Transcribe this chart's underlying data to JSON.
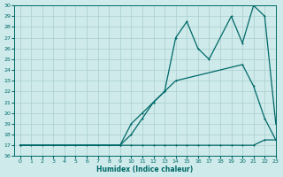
{
  "xlabel": "Humidex (Indice chaleur)",
  "bg_color": "#ceeaea",
  "grid_color": "#aacece",
  "line_color": "#006868",
  "ylim": [
    16,
    30
  ],
  "xlim": [
    -0.5,
    23
  ],
  "yticks": [
    16,
    17,
    18,
    19,
    20,
    21,
    22,
    23,
    24,
    25,
    26,
    27,
    28,
    29,
    30
  ],
  "xticks": [
    0,
    1,
    2,
    3,
    4,
    5,
    6,
    7,
    8,
    9,
    10,
    11,
    12,
    13,
    14,
    15,
    16,
    17,
    18,
    19,
    20,
    21,
    22,
    23
  ],
  "line1_x": [
    0,
    1,
    2,
    3,
    4,
    5,
    6,
    7,
    8,
    9,
    10,
    11,
    12,
    13,
    14,
    15,
    16,
    17,
    18,
    19,
    20,
    21,
    22,
    23
  ],
  "line1_y": [
    17,
    17,
    17,
    17,
    17,
    17,
    17,
    17,
    17,
    17,
    17,
    17,
    17,
    17,
    17,
    17,
    17,
    17,
    17,
    17,
    17,
    17,
    17.5,
    17.5
  ],
  "line2_x": [
    0,
    9,
    10,
    11,
    12,
    13,
    14,
    20,
    21,
    22,
    23
  ],
  "line2_y": [
    17,
    17,
    19,
    20,
    21,
    22,
    23,
    24.5,
    22.5,
    19.5,
    17.5
  ],
  "line3_x": [
    0,
    9,
    10,
    11,
    12,
    13,
    14,
    15,
    16,
    17,
    19,
    20,
    21,
    22,
    23
  ],
  "line3_y": [
    17,
    17,
    18,
    19.5,
    21,
    22,
    27,
    28.5,
    26,
    25,
    29,
    26.5,
    30,
    29,
    19
  ]
}
